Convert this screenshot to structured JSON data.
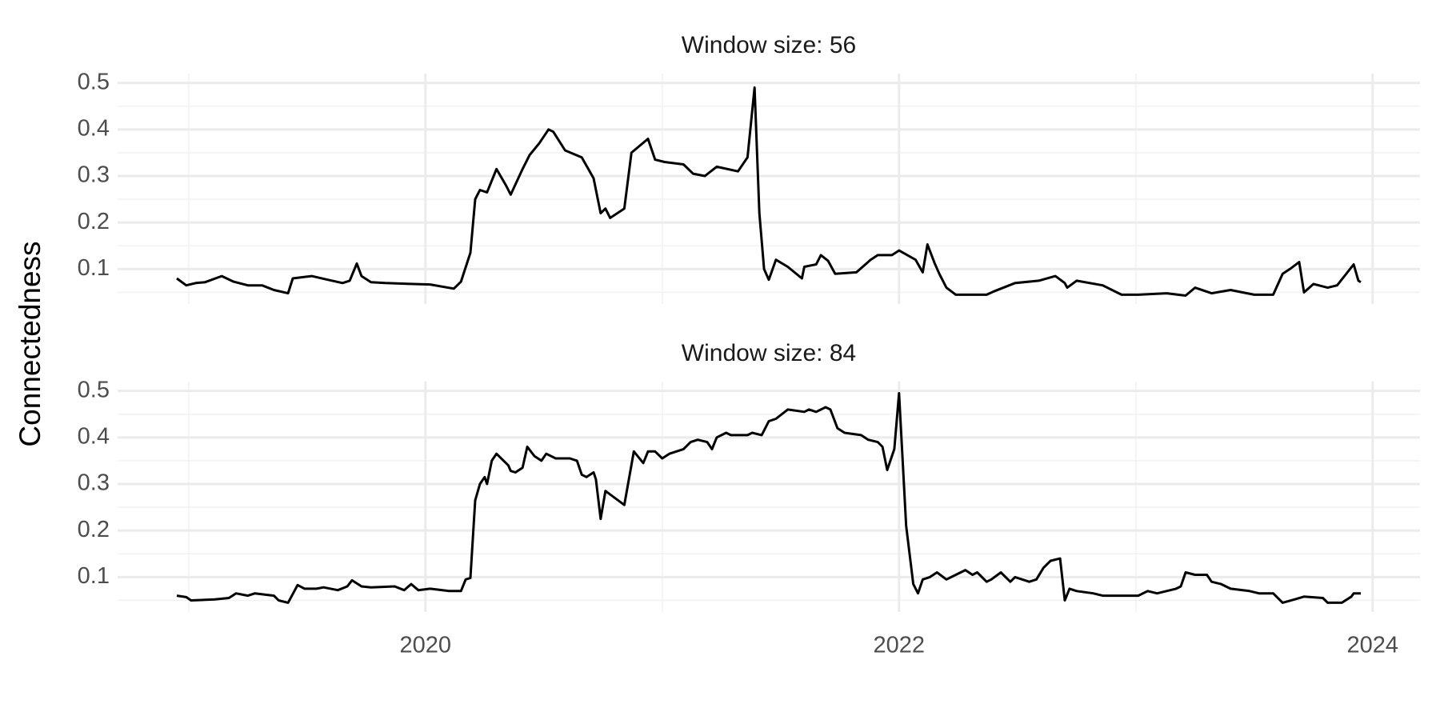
{
  "chart_data": [
    {
      "type": "line",
      "title": "Window size: 56",
      "ylabel": "Connectedness",
      "x": [
        2018.95,
        2018.99,
        2019.03,
        2019.07,
        2019.14,
        2019.19,
        2019.25,
        2019.31,
        2019.36,
        2019.42,
        2019.44,
        2019.52,
        2019.58,
        2019.65,
        2019.68,
        2019.71,
        2019.73,
        2019.77,
        2019.83,
        2019.95,
        2020.02,
        2020.12,
        2020.15,
        2020.19,
        2020.21,
        2020.23,
        2020.26,
        2020.3,
        2020.34,
        2020.36,
        2020.41,
        2020.44,
        2020.48,
        2020.52,
        2020.54,
        2020.59,
        2020.66,
        2020.71,
        2020.74,
        2020.76,
        2020.78,
        2020.84,
        2020.87,
        2020.94,
        2020.97,
        2021.01,
        2021.09,
        2021.13,
        2021.18,
        2021.23,
        2021.32,
        2021.36,
        2021.39,
        2021.41,
        2021.43,
        2021.45,
        2021.48,
        2021.53,
        2021.59,
        2021.6,
        2021.65,
        2021.67,
        2021.7,
        2021.73,
        2021.82,
        2021.88,
        2021.91,
        2021.97,
        2022.0,
        2022.07,
        2022.1,
        2022.12,
        2022.15,
        2022.17,
        2022.2,
        2022.24,
        2022.37,
        2022.4,
        2022.49,
        2022.59,
        2022.66,
        2022.7,
        2022.71,
        2022.75,
        2022.86,
        2022.94,
        2023.01,
        2023.13,
        2023.21,
        2023.25,
        2023.32,
        2023.4,
        2023.5,
        2023.58,
        2023.62,
        2023.65,
        2023.69,
        2023.71,
        2023.75,
        2023.81,
        2023.85,
        2023.92,
        2023.94,
        2023.95
      ],
      "series": [
        {
          "color": "#000000",
          "values": [
            0.08,
            0.065,
            0.07,
            0.072,
            0.085,
            0.073,
            0.065,
            0.065,
            0.055,
            0.048,
            0.08,
            0.085,
            0.078,
            0.07,
            0.075,
            0.112,
            0.085,
            0.072,
            0.07,
            0.068,
            0.067,
            0.058,
            0.073,
            0.135,
            0.25,
            0.27,
            0.265,
            0.315,
            0.28,
            0.26,
            0.315,
            0.345,
            0.37,
            0.4,
            0.395,
            0.355,
            0.34,
            0.295,
            0.22,
            0.23,
            0.21,
            0.23,
            0.35,
            0.38,
            0.335,
            0.33,
            0.325,
            0.305,
            0.3,
            0.32,
            0.31,
            0.34,
            0.49,
            0.22,
            0.1,
            0.077,
            0.12,
            0.105,
            0.08,
            0.105,
            0.11,
            0.13,
            0.118,
            0.09,
            0.093,
            0.12,
            0.13,
            0.13,
            0.14,
            0.12,
            0.093,
            0.153,
            0.113,
            0.09,
            0.06,
            0.045,
            0.045,
            0.052,
            0.07,
            0.075,
            0.085,
            0.07,
            0.06,
            0.075,
            0.065,
            0.045,
            0.045,
            0.048,
            0.043,
            0.06,
            0.048,
            0.055,
            0.045,
            0.045,
            0.09,
            0.1,
            0.115,
            0.05,
            0.068,
            0.06,
            0.065,
            0.11,
            0.075,
            0.072
          ]
        }
      ],
      "xlim": [
        2018.7,
        2024.2
      ],
      "xticks": [
        2020,
        2022,
        2024
      ],
      "xminor": [
        2019,
        2021,
        2023
      ],
      "ylim": [
        0.025,
        0.52
      ],
      "yticks": [
        0.1,
        0.2,
        0.3,
        0.4,
        0.5
      ],
      "yminor": [
        0.05,
        0.15,
        0.25,
        0.35,
        0.45
      ],
      "grid": true
    },
    {
      "type": "line",
      "title": "Window size: 84",
      "x": [
        2018.95,
        2018.99,
        2019.01,
        2019.11,
        2019.17,
        2019.2,
        2019.25,
        2019.28,
        2019.36,
        2019.38,
        2019.42,
        2019.46,
        2019.49,
        2019.54,
        2019.57,
        2019.63,
        2019.67,
        2019.69,
        2019.73,
        2019.77,
        2019.87,
        2019.91,
        2019.94,
        2019.97,
        2020.02,
        2020.1,
        2020.15,
        2020.17,
        2020.19,
        2020.21,
        2020.23,
        2020.25,
        2020.26,
        2020.28,
        2020.3,
        2020.35,
        2020.36,
        2020.38,
        2020.41,
        2020.43,
        2020.46,
        2020.49,
        2020.51,
        2020.55,
        2020.61,
        2020.64,
        2020.66,
        2020.68,
        2020.71,
        2020.72,
        2020.74,
        2020.76,
        2020.84,
        2020.88,
        2020.92,
        2020.94,
        2020.97,
        2021.0,
        2021.03,
        2021.09,
        2021.12,
        2021.15,
        2021.19,
        2021.21,
        2021.23,
        2021.27,
        2021.29,
        2021.36,
        2021.38,
        2021.42,
        2021.45,
        2021.48,
        2021.53,
        2021.6,
        2021.62,
        2021.65,
        2021.69,
        2021.71,
        2021.74,
        2021.77,
        2021.84,
        2021.87,
        2021.91,
        2021.93,
        2021.95,
        2021.97,
        2021.98,
        2022.0,
        2022.03,
        2022.06,
        2022.08,
        2022.1,
        2022.13,
        2022.16,
        2022.2,
        2022.24,
        2022.28,
        2022.31,
        2022.33,
        2022.37,
        2022.39,
        2022.43,
        2022.47,
        2022.49,
        2022.55,
        2022.58,
        2022.61,
        2022.64,
        2022.68,
        2022.7,
        2022.72,
        2022.75,
        2022.82,
        2022.86,
        2022.94,
        2023.01,
        2023.05,
        2023.09,
        2023.17,
        2023.19,
        2023.21,
        2023.25,
        2023.3,
        2023.32,
        2023.36,
        2023.4,
        2023.48,
        2023.52,
        2023.58,
        2023.62,
        2023.67,
        2023.71,
        2023.79,
        2023.81,
        2023.87,
        2023.91,
        2023.92,
        2023.95
      ],
      "series": [
        {
          "color": "#000000",
          "values": [
            0.06,
            0.057,
            0.05,
            0.052,
            0.055,
            0.065,
            0.06,
            0.065,
            0.06,
            0.05,
            0.045,
            0.083,
            0.075,
            0.075,
            0.078,
            0.072,
            0.08,
            0.093,
            0.08,
            0.078,
            0.08,
            0.072,
            0.085,
            0.072,
            0.075,
            0.07,
            0.07,
            0.095,
            0.098,
            0.265,
            0.3,
            0.315,
            0.3,
            0.35,
            0.365,
            0.34,
            0.328,
            0.325,
            0.335,
            0.38,
            0.36,
            0.35,
            0.365,
            0.355,
            0.355,
            0.35,
            0.32,
            0.315,
            0.325,
            0.31,
            0.225,
            0.285,
            0.255,
            0.37,
            0.345,
            0.37,
            0.37,
            0.355,
            0.365,
            0.375,
            0.39,
            0.395,
            0.39,
            0.375,
            0.4,
            0.41,
            0.405,
            0.405,
            0.41,
            0.405,
            0.435,
            0.44,
            0.46,
            0.455,
            0.46,
            0.455,
            0.465,
            0.46,
            0.42,
            0.41,
            0.405,
            0.395,
            0.39,
            0.38,
            0.33,
            0.36,
            0.375,
            0.495,
            0.21,
            0.085,
            0.065,
            0.095,
            0.1,
            0.11,
            0.095,
            0.105,
            0.115,
            0.105,
            0.11,
            0.09,
            0.095,
            0.11,
            0.09,
            0.1,
            0.09,
            0.095,
            0.12,
            0.135,
            0.14,
            0.05,
            0.075,
            0.07,
            0.065,
            0.06,
            0.06,
            0.06,
            0.07,
            0.065,
            0.075,
            0.08,
            0.11,
            0.105,
            0.105,
            0.09,
            0.085,
            0.075,
            0.07,
            0.065,
            0.065,
            0.045,
            0.052,
            0.058,
            0.055,
            0.045,
            0.045,
            0.058,
            0.065,
            0.065
          ]
        }
      ],
      "xlim": [
        2018.7,
        2024.2
      ],
      "xticks": [
        2020,
        2022,
        2024
      ],
      "xminor": [
        2019,
        2021,
        2023
      ],
      "ylim": [
        0.025,
        0.52
      ],
      "yticks": [
        0.1,
        0.2,
        0.3,
        0.4,
        0.5
      ],
      "yminor": [
        0.05,
        0.15,
        0.25,
        0.35,
        0.45
      ],
      "grid": true
    }
  ]
}
